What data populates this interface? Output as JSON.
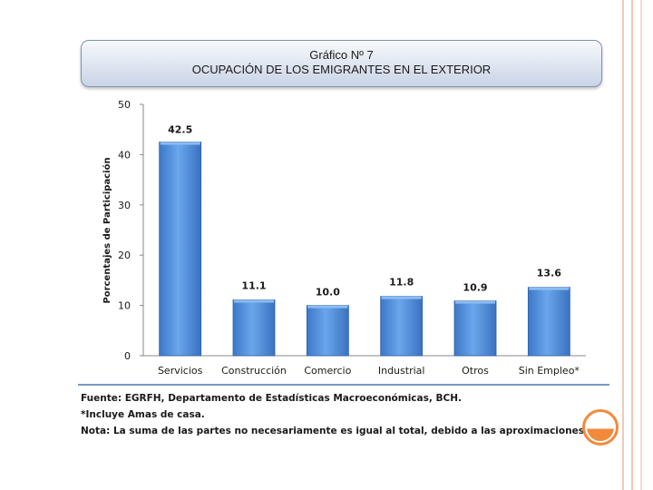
{
  "title": {
    "line1": "Gráfico Nº 7",
    "line2": "OCUPACIÓN DE LOS EMIGRANTES EN EL EXTERIOR"
  },
  "chart_data": {
    "type": "bar",
    "title": "Gráfico Nº 7 — OCUPACIÓN DE LOS EMIGRANTES EN EL EXTERIOR",
    "categories": [
      "Servicios",
      "Construcción",
      "Comercio",
      "Industrial",
      "Otros",
      "Sin Empleo*"
    ],
    "values": [
      42.5,
      11.1,
      10.0,
      11.8,
      10.9,
      13.6
    ],
    "value_labels": [
      "42.5",
      "11.1",
      "10.0",
      "11.8",
      "10.9",
      "13.6"
    ],
    "xlabel": "",
    "ylabel": "Porcentajes de Participación",
    "ylim": [
      0,
      50
    ],
    "yticks": [
      0,
      10,
      20,
      30,
      40,
      50
    ],
    "grid": false,
    "bar_color": "#4f8fdc"
  },
  "notes": {
    "source": "Fuente: EGRFH, Departamento de Estadísticas Macroeconómicas, BCH.",
    "footnote": "*Incluye Amas de casa.",
    "note": "Nota: La suma de las partes no necesariamente es igual al total, debido a las aproximaciones."
  }
}
